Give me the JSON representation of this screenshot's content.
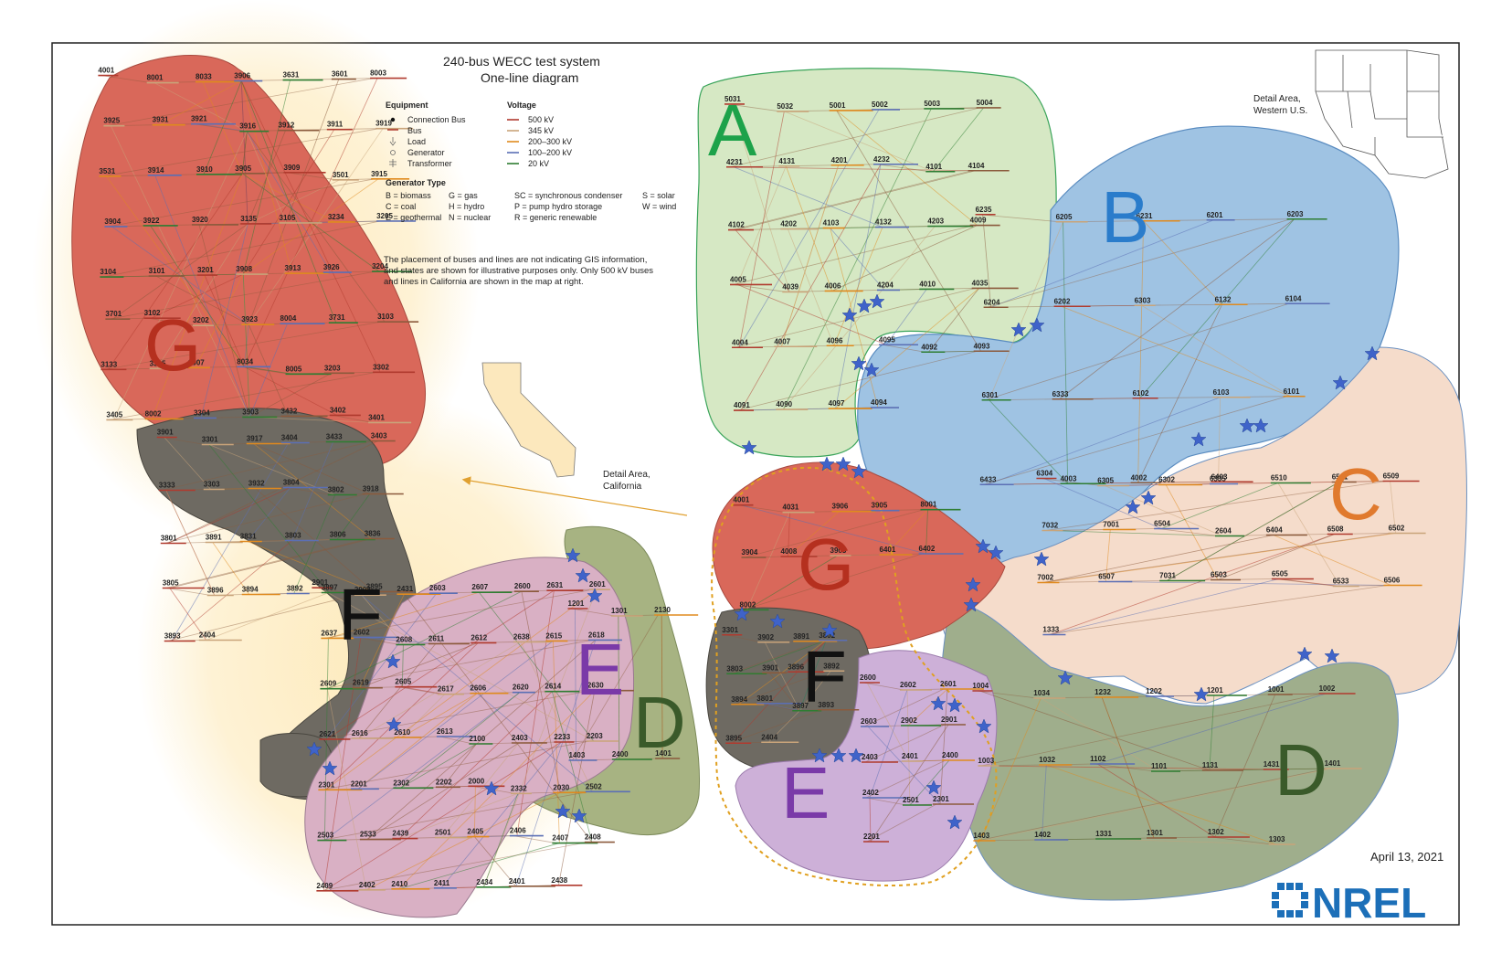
{
  "title": {
    "line1": "240-bus WECC test system",
    "line2": "One-line diagram"
  },
  "legend": {
    "equipment_heading": "Equipment",
    "equipment": [
      "Connection Bus",
      "Bus",
      "Load",
      "Generator",
      "Transformer"
    ],
    "voltage_heading": "Voltage",
    "voltages": [
      {
        "label": "500 kV",
        "color": "#b03a2e"
      },
      {
        "label": "345 kV",
        "color": "#c9a47a"
      },
      {
        "label": "200–300 kV",
        "color": "#e08a1e"
      },
      {
        "label": "100–200 kV",
        "color": "#5b6fb5"
      },
      {
        "label": "20 kV",
        "color": "#2e7d32"
      }
    ],
    "gentype_heading": "Generator Type",
    "gentypes": [
      [
        "B = biomass",
        "G = gas",
        "SC = synchronous condenser",
        "S = solar"
      ],
      [
        "C = coal",
        "H = hydro",
        "P = pump hydro storage",
        "W = wind"
      ],
      [
        "E = geothermal",
        "N = nuclear",
        "R = generic renewable",
        ""
      ]
    ]
  },
  "note": [
    "The placement  of buses and lines are not indicating GIS information,",
    "and states are shown for illustrative purposes only. Only 500 kV buses",
    "and lines in California are shown in the map at right."
  ],
  "detail_western": [
    "Detail Area,",
    "Western U.S."
  ],
  "detail_california": [
    "Detail Area,",
    "California"
  ],
  "date": "April 13, 2021",
  "logo": "NREL",
  "colors": {
    "region_A": "#d6e8c4",
    "region_B": "#9fc3e3",
    "region_C": "#f5dccb",
    "region_D": "#9fae8c",
    "region_E": "#cdb0d8",
    "region_F": "#6e6a62",
    "region_G": "#d9685a",
    "california_glow": "#fde9b8",
    "california_map": "#fce8bd",
    "star": "#3f63c9",
    "letter_A": "#1da24a",
    "letter_B": "#2a7ccb",
    "letter_C": "#e07a2e",
    "letter_D": "#3a5a2a",
    "letter_E": "#7a3aa8",
    "letter_F": "#111111",
    "letter_G": "#b5301f"
  },
  "region_letters": {
    "A": "A",
    "B": "B",
    "C": "C",
    "D_left": "D",
    "D_right": "D",
    "E_left": "E",
    "E_right": "E",
    "F_left": "F",
    "F_right": "F",
    "G_left": "G",
    "G_right": "G"
  },
  "buses_A": [
    "5031",
    "5032",
    "5001",
    "5002",
    "5003",
    "5004",
    "4231",
    "4131",
    "4201",
    "4232",
    "4101",
    "4104",
    "4102",
    "4202",
    "4103",
    "4132",
    "4203",
    "4009",
    "4005",
    "4039",
    "4006",
    "4204",
    "4010",
    "4035",
    "4004",
    "4007",
    "4096",
    "4095",
    "4092",
    "4093",
    "4091",
    "4090",
    "4097",
    "4094"
  ],
  "buses_B": [
    "6235",
    "6205",
    "6231",
    "6201",
    "6203",
    "6204",
    "6202",
    "6303",
    "6132",
    "6104",
    "6301",
    "6333",
    "6102",
    "6103",
    "6101",
    "6433",
    "4003",
    "4002",
    "6403"
  ],
  "buses_C": [
    "6304",
    "6305",
    "6302",
    "6335",
    "6510",
    "6501",
    "6509",
    "7032",
    "7001",
    "6504",
    "2604",
    "6404",
    "6508",
    "6502",
    "7002",
    "6507",
    "7031",
    "6503",
    "6505",
    "6533",
    "6506",
    "1333"
  ],
  "buses_D": [
    "1004",
    "1034",
    "1232",
    "1202",
    "1201",
    "1001",
    "1002",
    "1003",
    "1032",
    "1102",
    "1101",
    "1131",
    "1431",
    "1401",
    "1403",
    "1402",
    "1331",
    "1301",
    "1302",
    "1303"
  ],
  "buses_E_right": [
    "2600",
    "2602",
    "2601",
    "2603",
    "2902",
    "2901",
    "2403",
    "2401",
    "2400",
    "2402",
    "2501",
    "2301",
    "2201"
  ],
  "buses_F_right": [
    "3301",
    "3902",
    "3891",
    "3802",
    "3803",
    "3901",
    "3896",
    "3892",
    "3894",
    "3801",
    "3897",
    "3893",
    "3895",
    "2404"
  ],
  "buses_G_right": [
    "4001",
    "4031",
    "3906",
    "3905",
    "8001",
    "3904",
    "4008",
    "3903",
    "6401",
    "6402",
    "8002"
  ],
  "buses_G_left": [
    "4001",
    "8001",
    "8033",
    "3906",
    "3631",
    "3601",
    "8003",
    "3925",
    "3931",
    "3921",
    "3916",
    "3912",
    "3911",
    "3919",
    "3531",
    "3914",
    "3910",
    "3905",
    "3909",
    "3501",
    "3915",
    "3904",
    "3922",
    "3920",
    "3135",
    "3105",
    "3234",
    "3205",
    "3104",
    "3101",
    "3201",
    "3908",
    "3913",
    "3926",
    "3204",
    "3701",
    "3102",
    "3202",
    "3923",
    "8004",
    "3731",
    "3103",
    "3133",
    "3305",
    "3907",
    "8034",
    "8005",
    "3203",
    "3302",
    "3405",
    "8002",
    "3304",
    "3903",
    "3432",
    "3402",
    "3401"
  ],
  "buses_F_left": [
    "3901",
    "3301",
    "3917",
    "3404",
    "3433",
    "3403",
    "3333",
    "3303",
    "3932",
    "3804",
    "3802",
    "3918",
    "3801",
    "3891",
    "3831",
    "3803",
    "3806",
    "3836",
    "3805",
    "3896",
    "3894",
    "3892",
    "3897",
    "3895",
    "3893",
    "2404"
  ],
  "buses_E_left": [
    "2901",
    "2902",
    "2431",
    "2603",
    "2607",
    "2600",
    "2631",
    "2601",
    "2637",
    "2602",
    "2608",
    "2611",
    "2612",
    "2638",
    "2615",
    "2618",
    "2609",
    "2619",
    "2605",
    "2617",
    "2606",
    "2620",
    "2614",
    "2630",
    "2621",
    "2616",
    "2610",
    "2613",
    "2100",
    "2403",
    "2233",
    "2203",
    "2301",
    "2201",
    "2302",
    "2202",
    "2000",
    "2332",
    "2030",
    "2502",
    "2503",
    "2533",
    "2439",
    "2501",
    "2405",
    "2406",
    "2407",
    "2408",
    "2409",
    "2402",
    "2410",
    "2411",
    "2434",
    "2401",
    "2438"
  ],
  "buses_D_left": [
    "1201",
    "1301",
    "2130",
    "1403",
    "2400",
    "1401"
  ]
}
